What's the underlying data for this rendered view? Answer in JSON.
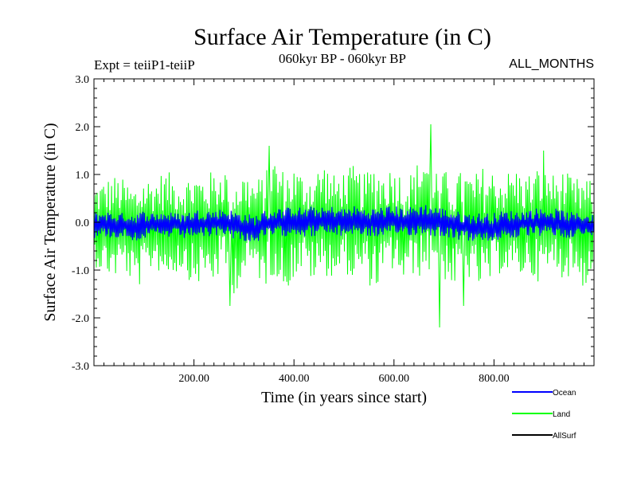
{
  "chart_data": {
    "type": "line",
    "title": "Surface Air Temperature (in C)",
    "subtitle_left": "Expt = teiiP1-teiiP",
    "subtitle_center": "060kyr BP - 060kyr BP",
    "subtitle_right": "ALL_MONTHS",
    "xlabel": "Time (in years since start)",
    "ylabel": "Surface Air Temperature (in C)",
    "xlim": [
      0,
      1000
    ],
    "ylim": [
      -3.0,
      3.0
    ],
    "x_ticks": [
      200,
      400,
      600,
      800
    ],
    "x_tick_labels": [
      "200.00",
      "400.00",
      "600.00",
      "800.00"
    ],
    "y_ticks": [
      -3.0,
      -2.0,
      -1.0,
      0.0,
      1.0,
      2.0,
      3.0
    ],
    "y_tick_labels": [
      "-3.0",
      "-2.0",
      "-1.0",
      "0.0",
      "1.0",
      "2.0",
      "3.0"
    ],
    "legend_position": "bottom-right",
    "series": [
      {
        "name": "Land",
        "color": "#00ff00",
        "x": [
          0,
          20,
          40,
          60,
          80,
          100,
          120,
          140,
          160,
          180,
          200,
          220,
          240,
          260,
          280,
          300,
          320,
          340,
          360,
          380,
          400,
          420,
          440,
          460,
          480,
          500,
          520,
          540,
          560,
          580,
          600,
          620,
          640,
          660,
          680,
          700,
          720,
          740,
          760,
          780,
          800,
          820,
          840,
          860,
          880,
          900,
          920,
          940,
          960,
          980,
          1000
        ],
        "low": [
          -0.9,
          -1.1,
          -1.2,
          -1.0,
          -1.4,
          -1.3,
          -0.9,
          -1.2,
          -1.1,
          -1.0,
          -1.4,
          -1.2,
          -1.3,
          -1.0,
          -1.5,
          -1.2,
          -1.0,
          -1.4,
          -1.1,
          -1.5,
          -1.2,
          -1.0,
          -1.3,
          -1.1,
          -1.2,
          -1.0,
          -1.3,
          -1.1,
          -1.5,
          -1.2,
          -1.0,
          -1.3,
          -1.1,
          -1.2,
          -1.0,
          -1.2,
          -1.4,
          -1.1,
          -1.3,
          -1.5,
          -1.2,
          -1.0,
          -1.3,
          -1.1,
          -1.2,
          -1.3,
          -1.0,
          -1.2,
          -1.1,
          -1.4,
          -1.2
        ],
        "high": [
          0.8,
          0.9,
          1.0,
          0.9,
          0.8,
          1.0,
          0.9,
          1.1,
          1.0,
          0.9,
          1.1,
          1.0,
          1.1,
          1.2,
          1.0,
          1.1,
          0.9,
          1.0,
          1.4,
          1.1,
          1.2,
          1.0,
          1.1,
          1.3,
          1.0,
          1.1,
          1.2,
          1.0,
          1.3,
          1.1,
          1.2,
          1.0,
          1.1,
          1.6,
          1.2,
          1.1,
          1.0,
          1.1,
          1.0,
          1.2,
          1.1,
          1.0,
          1.2,
          1.0,
          1.1,
          1.3,
          1.0,
          1.1,
          0.9,
          1.0,
          0.8
        ],
        "extremes": [
          {
            "x": 272,
            "y": -1.75
          },
          {
            "x": 350,
            "y": 1.6
          },
          {
            "x": 673,
            "y": 2.05
          },
          {
            "x": 692,
            "y": -2.2
          },
          {
            "x": 740,
            "y": -1.75
          },
          {
            "x": 900,
            "y": 1.5
          }
        ]
      },
      {
        "name": "Ocean",
        "color": "#0000ff",
        "x": [
          0,
          20,
          40,
          60,
          80,
          100,
          120,
          140,
          160,
          180,
          200,
          220,
          240,
          260,
          280,
          300,
          320,
          340,
          360,
          380,
          400,
          420,
          440,
          460,
          480,
          500,
          520,
          540,
          560,
          580,
          600,
          620,
          640,
          660,
          680,
          700,
          720,
          740,
          760,
          780,
          800,
          820,
          840,
          860,
          880,
          900,
          920,
          940,
          960,
          980,
          1000
        ],
        "low": [
          -0.35,
          -0.3,
          -0.35,
          -0.3,
          -0.4,
          -0.35,
          -0.3,
          -0.35,
          -0.3,
          -0.35,
          -0.3,
          -0.35,
          -0.3,
          -0.25,
          -0.35,
          -0.4,
          -0.45,
          -0.35,
          -0.3,
          -0.3,
          -0.25,
          -0.3,
          -0.3,
          -0.25,
          -0.3,
          -0.3,
          -0.25,
          -0.3,
          -0.3,
          -0.35,
          -0.3,
          -0.25,
          -0.3,
          -0.25,
          -0.3,
          -0.3,
          -0.35,
          -0.4,
          -0.4,
          -0.45,
          -0.4,
          -0.35,
          -0.35,
          -0.3,
          -0.3,
          -0.3,
          -0.3,
          -0.35,
          -0.3,
          -0.3,
          -0.35
        ],
        "high": [
          0.2,
          0.25,
          0.2,
          0.2,
          0.2,
          0.25,
          0.2,
          0.25,
          0.2,
          0.2,
          0.25,
          0.3,
          0.25,
          0.3,
          0.25,
          0.2,
          0.15,
          0.25,
          0.3,
          0.3,
          0.35,
          0.3,
          0.35,
          0.3,
          0.35,
          0.3,
          0.35,
          0.3,
          0.3,
          0.35,
          0.35,
          0.3,
          0.35,
          0.4,
          0.35,
          0.3,
          0.25,
          0.2,
          0.2,
          0.2,
          0.2,
          0.25,
          0.25,
          0.25,
          0.3,
          0.3,
          0.3,
          0.25,
          0.2,
          0.2,
          0.15
        ]
      },
      {
        "name": "AllSurf",
        "color": "#000000",
        "x": [],
        "values": []
      }
    ]
  },
  "legend": {
    "items": [
      {
        "label": "Ocean",
        "color": "#0000ff"
      },
      {
        "label": "Land",
        "color": "#00ff00"
      },
      {
        "label": "AllSurf",
        "color": "#000000"
      }
    ]
  }
}
